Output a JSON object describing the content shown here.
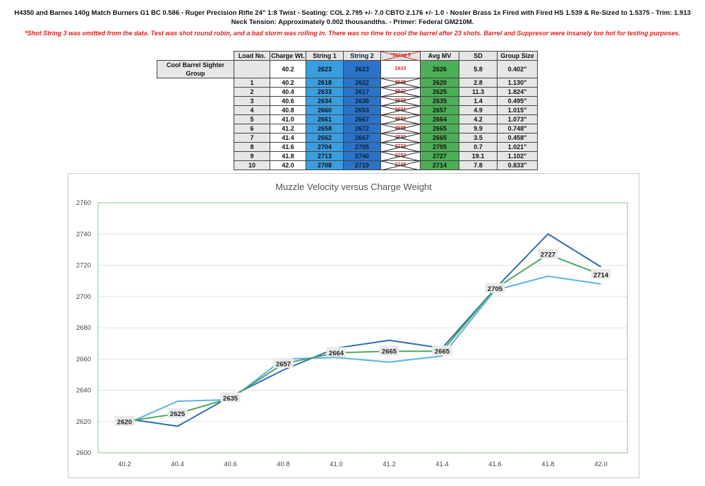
{
  "header": {
    "line1": "H4350 and Barnes 140g Match Burners G1 BC 0.586 - Ruger Precision Rifle 24\" 1:8 Twist - Seating: COL 2.795 +/- 7.0 CBTO 2.176 +/- 1.0  - Nosler Brass 1x Fired with Fired HS 1.539 & Re-Sized to 1.5375 - Trim: 1.913",
    "line2": "Neck Tension: Approximately 0.002 thousandths. - Primer: Federal GM210M.",
    "note": "*Shot String 3 was omitted from the data. Test was shot round robin, and a bad storm was rolling in. There was no time to cool the barrel after 23 shots. Barrel and Suppresor were insanely too hot for testing purposes."
  },
  "table": {
    "headers": [
      "Load No.",
      "Charge Wt.",
      "String 1",
      "String 2",
      "*String 3",
      "Avg MV",
      "SD",
      "Group Size"
    ],
    "rows": [
      [
        "Cool Barrel Sighter Group",
        "40.2",
        "2623",
        "2623",
        "2633",
        "2626",
        "5.8",
        "0.402\""
      ],
      [
        "1",
        "40.2",
        "2618",
        "2622",
        "2646",
        "2620",
        "2.8",
        "1.130\""
      ],
      [
        "2",
        "40.4",
        "2633",
        "2617",
        "2647",
        "2625",
        "11.3",
        "1.824\""
      ],
      [
        "3",
        "40.6",
        "2634",
        "2636",
        "2659",
        "2635",
        "1.4",
        "0.495\""
      ],
      [
        "4",
        "40.8",
        "2660",
        "2653",
        "2681",
        "2657",
        "4.9",
        "1.015\""
      ],
      [
        "5",
        "41.0",
        "2661",
        "2667",
        "2680",
        "2664",
        "4.2",
        "1.073\""
      ],
      [
        "6",
        "41.2",
        "2658",
        "2672",
        "2695",
        "2665",
        "9.9",
        "0.748\""
      ],
      [
        "7",
        "41.4",
        "2662",
        "2667",
        "2690",
        "2665",
        "3.5",
        "0.458\""
      ],
      [
        "8",
        "41.6",
        "2704",
        "2705",
        "2722",
        "2705",
        "0.7",
        "1.021\""
      ],
      [
        "9",
        "41.8",
        "2713",
        "2740",
        "2752",
        "2727",
        "19.1",
        "1.102\""
      ],
      [
        "10",
        "42.0",
        "2708",
        "2719",
        "2745",
        "2714",
        "7.8",
        "0.833\""
      ]
    ]
  },
  "colors": {
    "string1": "#5ab4e6",
    "string2": "#2f6fb0",
    "avg": "#4fa85e",
    "plot_border": "#8cc88c",
    "grid": "#e3e3e3"
  },
  "chart_data": {
    "type": "line",
    "title": "Muzzle Velocity versus Charge Weight",
    "categories": [
      "40.2",
      "40.4",
      "40.6",
      "40.8",
      "41.0",
      "41.2",
      "41.4",
      "41.6",
      "41.8",
      "42.0"
    ],
    "series": [
      {
        "name": "String 1",
        "values": [
          2618,
          2633,
          2634,
          2660,
          2661,
          2658,
          2662,
          2704,
          2713,
          2708
        ]
      },
      {
        "name": "String 2",
        "values": [
          2622,
          2617,
          2636,
          2653,
          2667,
          2672,
          2667,
          2705,
          2740,
          2719
        ]
      },
      {
        "name": "Avg MV",
        "values": [
          2620,
          2625,
          2635,
          2657,
          2664,
          2665,
          2665,
          2705,
          2727,
          2714
        ]
      }
    ],
    "data_labels": [
      "2620",
      "2625",
      "2635",
      "2657",
      "2664",
      "2665",
      "2665",
      "2705",
      "2727",
      "2714"
    ],
    "yticks": [
      "2600",
      "2620",
      "2640",
      "2660",
      "2680",
      "2700",
      "2720",
      "2740",
      "2760"
    ],
    "ylim": [
      2600,
      2760
    ],
    "grid": true,
    "legend": "none",
    "xlabel": "",
    "ylabel": ""
  }
}
